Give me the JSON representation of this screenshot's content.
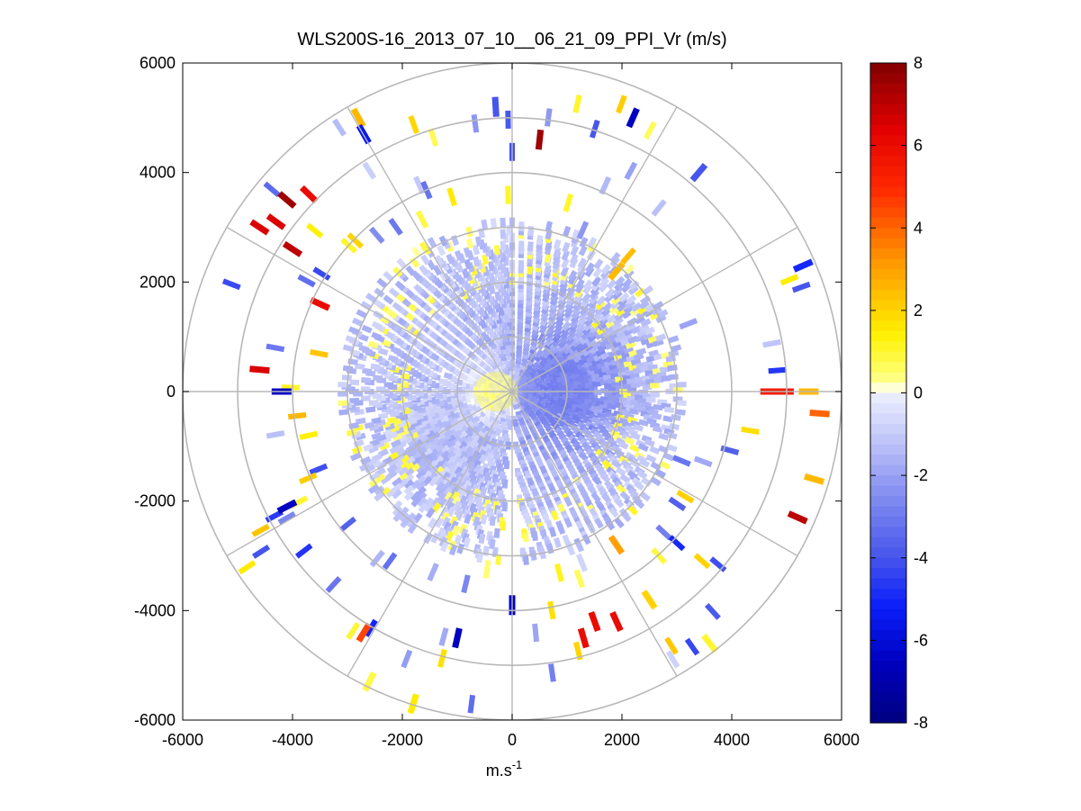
{
  "chart_data": {
    "type": "heatmap",
    "subtype": "polar-ppi-scan",
    "title": "WLS200S-16_2013_07_10__06_21_09_PPI_Vr (m/s)",
    "xlabel": "m.s",
    "xlabel_superscript": "-1",
    "ylabel": "",
    "xlim": [
      -6000,
      6000
    ],
    "ylim": [
      -6000,
      6000
    ],
    "xticks": [
      -6000,
      -4000,
      -2000,
      0,
      2000,
      4000,
      6000
    ],
    "yticks": [
      6000,
      4000,
      2000,
      0,
      -2000,
      -4000,
      -6000
    ],
    "xtick_labels": [
      "-6000",
      "-4000",
      "-2000",
      "0",
      "2000",
      "4000",
      "6000"
    ],
    "ytick_labels": [
      "6000",
      "4000",
      "2000",
      "0",
      "-2000",
      "-4000",
      "-6000"
    ],
    "range_rings": [
      1000,
      2000,
      3000,
      4000,
      5000,
      6000
    ],
    "spoke_angles_deg": [
      0,
      30,
      60,
      90,
      120,
      150,
      180,
      210,
      240,
      270,
      300,
      330
    ],
    "colorbar": {
      "min": -8,
      "max": 8,
      "ticks": [
        8,
        6,
        4,
        2,
        0,
        -2,
        -4,
        -6,
        -8
      ],
      "tick_labels": [
        "8",
        "6",
        "4",
        "2",
        "0",
        "-2",
        "-4",
        "-6",
        "-8"
      ],
      "colormap": "white-centered blue (negative) to red (positive)"
    },
    "gap_bearing_deg": 180,
    "notable_cells": [
      {
        "x": -300,
        "y": 0,
        "r": 400,
        "vr": 0.6,
        "desc": "positive (yellow) core west of origin"
      },
      {
        "x": 800,
        "y": 0,
        "r": 700,
        "vr": -2.8,
        "desc": "negative (blue) core east of origin"
      },
      {
        "x": 5400,
        "y": 0,
        "vr": 2.5
      },
      {
        "x": 4700,
        "y": 0,
        "vr": 5.5
      },
      {
        "x": 4950,
        "y": 0,
        "vr": 5.5
      },
      {
        "x": 5600,
        "y": -400,
        "vr": 4.0
      },
      {
        "x": 5200,
        "y": -2300,
        "vr": 7.0
      },
      {
        "x": 5500,
        "y": -1600,
        "vr": 2.5
      },
      {
        "x": 500,
        "y": 4600,
        "vr": 7.5
      },
      {
        "x": 2200,
        "y": 5000,
        "vr": -6.5
      },
      {
        "x": -4100,
        "y": 3500,
        "vr": 7.5
      },
      {
        "x": -4600,
        "y": 3000,
        "vr": 6.5
      },
      {
        "x": -3700,
        "y": 3600,
        "vr": 6.0
      },
      {
        "x": -4000,
        "y": 2600,
        "vr": 7.0
      },
      {
        "x": -4300,
        "y": 3100,
        "vr": 6.5
      },
      {
        "x": -4600,
        "y": 400,
        "vr": 6.5
      },
      {
        "x": -3500,
        "y": 1600,
        "vr": 6.0
      },
      {
        "x": -4100,
        "y": -2100,
        "vr": -6.5
      },
      {
        "x": -4200,
        "y": 0,
        "vr": -6.5
      },
      {
        "x": -300,
        "y": 5200,
        "vr": -4.0
      },
      {
        "x": -2800,
        "y": 5000,
        "vr": 2.5
      },
      {
        "x": 1500,
        "y": -4200,
        "vr": 6.0
      },
      {
        "x": 1900,
        "y": -4200,
        "vr": 6.0
      },
      {
        "x": 1300,
        "y": -4500,
        "vr": 6.0
      },
      {
        "x": 2500,
        "y": -3800,
        "vr": 2.0
      },
      {
        "x": 3600,
        "y": -4600,
        "vr": 1.0
      },
      {
        "x": -1000,
        "y": -4500,
        "vr": -6.5
      },
      {
        "x": -2700,
        "y": -4400,
        "vr": 4.5
      },
      {
        "x": -2600,
        "y": -5300,
        "vr": 0.8
      },
      {
        "x": -1800,
        "y": -5700,
        "vr": 1.5
      },
      {
        "x": 0,
        "y": -3900,
        "vr": -6.5
      },
      {
        "x": 5300,
        "y": 2300,
        "vr": -5.0
      },
      {
        "x": 3400,
        "y": 4000,
        "vr": -4.0
      },
      {
        "x": -2700,
        "y": 4700,
        "vr": -5.5
      },
      {
        "x": 1900,
        "y": 2200,
        "vr": 2.5
      },
      {
        "x": 1900,
        "y": -2800,
        "vr": 3.0
      }
    ]
  }
}
